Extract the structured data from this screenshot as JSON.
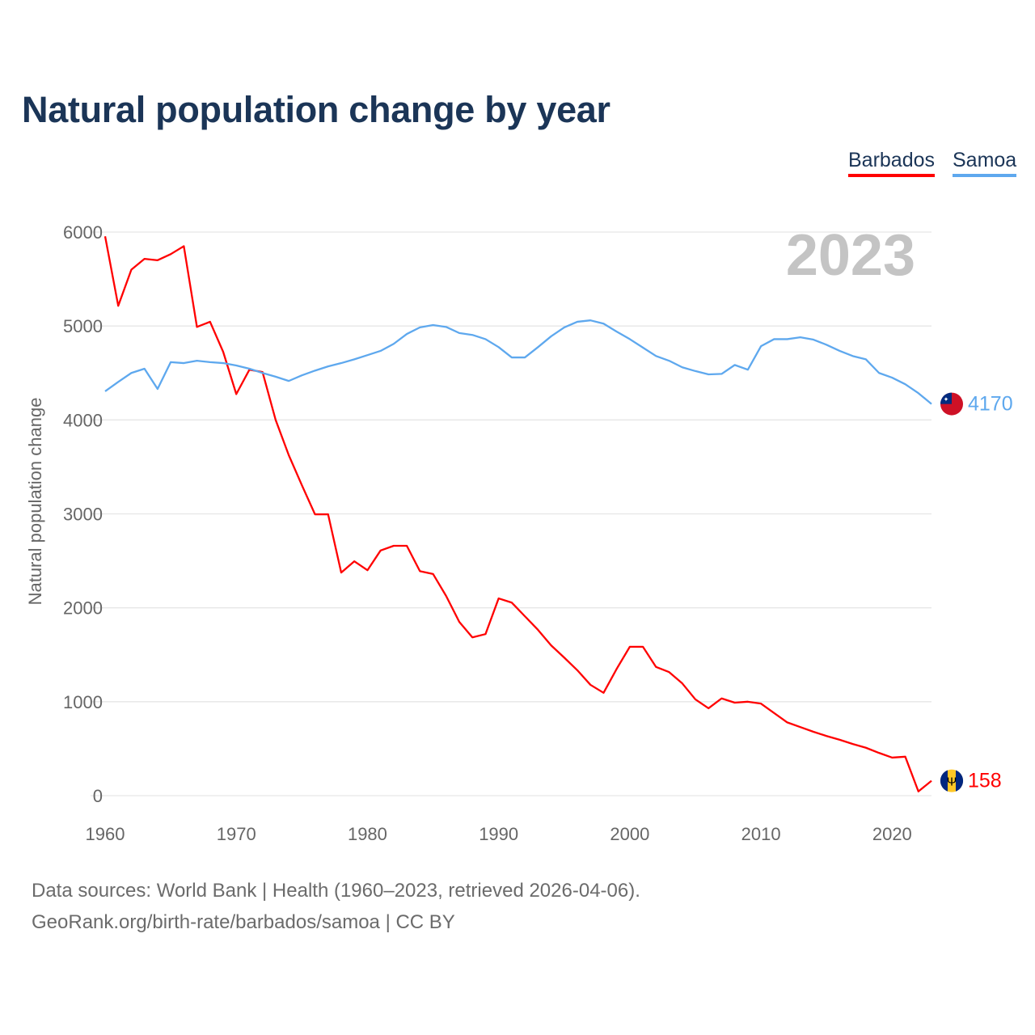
{
  "title": "Natural population change by year",
  "legend": [
    {
      "name": "Barbados",
      "color": "#ff0000"
    },
    {
      "name": "Samoa",
      "color": "#5ea8ee"
    }
  ],
  "year_label": "2023",
  "sources": {
    "line1": "Data sources: World Bank | Health (1960–2023, retrieved 2026-04-06).",
    "line2": "GeoRank.org/birth-rate/barbados/samoa | CC BY"
  },
  "chart_data": {
    "type": "line",
    "title": "Natural population change by year",
    "xlabel": "",
    "ylabel": "Natural population change",
    "xlim": [
      1960,
      2023
    ],
    "ylim": [
      0,
      6000
    ],
    "xticks": [
      1960,
      1970,
      1980,
      1990,
      2000,
      2010,
      2020
    ],
    "yticks": [
      0,
      1000,
      2000,
      3000,
      4000,
      5000,
      6000
    ],
    "grid": true,
    "legend_position": "top-right",
    "x": [
      1960,
      1961,
      1962,
      1963,
      1964,
      1965,
      1966,
      1967,
      1968,
      1969,
      1970,
      1971,
      1972,
      1973,
      1974,
      1975,
      1976,
      1977,
      1978,
      1979,
      1980,
      1981,
      1982,
      1983,
      1984,
      1985,
      1986,
      1987,
      1988,
      1989,
      1990,
      1991,
      1992,
      1993,
      1994,
      1995,
      1996,
      1997,
      1998,
      1999,
      2000,
      2001,
      2002,
      2003,
      2004,
      2005,
      2006,
      2007,
      2008,
      2009,
      2010,
      2011,
      2012,
      2013,
      2014,
      2015,
      2016,
      2017,
      2018,
      2019,
      2020,
      2021,
      2022,
      2023
    ],
    "series": [
      {
        "name": "Barbados",
        "color": "#ff0000",
        "end_label": "158",
        "values": [
          5955,
          5215,
          5600,
          5715,
          5700,
          5765,
          5850,
          4990,
          5045,
          4725,
          4275,
          4535,
          4510,
          4000,
          3625,
          3305,
          2995,
          2995,
          2375,
          2495,
          2400,
          2610,
          2660,
          2660,
          2390,
          2360,
          2125,
          1850,
          1685,
          1720,
          2100,
          2055,
          1910,
          1765,
          1600,
          1470,
          1335,
          1180,
          1095,
          1350,
          1585,
          1585,
          1370,
          1315,
          1195,
          1025,
          930,
          1035,
          990,
          1000,
          980,
          880,
          780,
          730,
          680,
          635,
          595,
          550,
          510,
          455,
          405,
          415,
          45,
          158
        ]
      },
      {
        "name": "Samoa",
        "color": "#5ea8ee",
        "end_label": "4170",
        "values": [
          4305,
          4405,
          4500,
          4545,
          4330,
          4615,
          4605,
          4630,
          4615,
          4605,
          4580,
          4545,
          4500,
          4460,
          4415,
          4475,
          4525,
          4570,
          4605,
          4645,
          4690,
          4735,
          4810,
          4915,
          4985,
          5010,
          4990,
          4925,
          4905,
          4860,
          4775,
          4665,
          4665,
          4775,
          4890,
          4985,
          5045,
          5060,
          5025,
          4940,
          4860,
          4770,
          4680,
          4630,
          4560,
          4520,
          4485,
          4490,
          4585,
          4535,
          4785,
          4860,
          4860,
          4880,
          4855,
          4800,
          4735,
          4680,
          4645,
          4500,
          4450,
          4380,
          4285,
          4170
        ]
      }
    ]
  }
}
